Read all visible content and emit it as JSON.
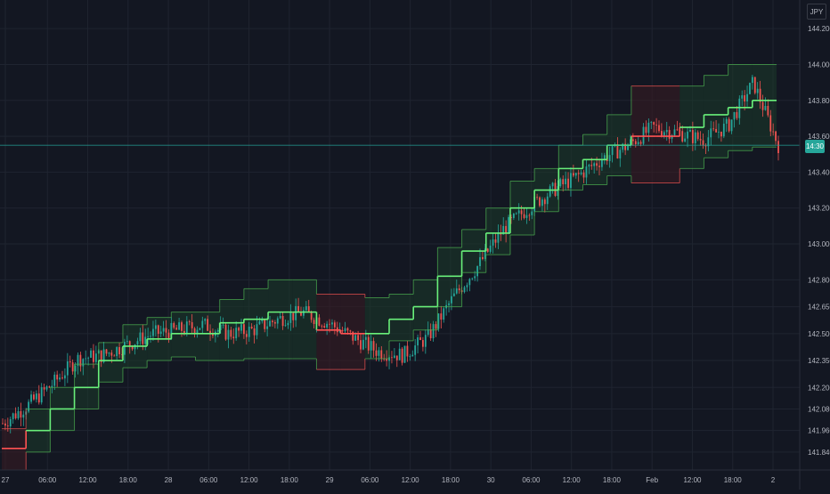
{
  "currency": "JPY",
  "last_price_label": "14:30",
  "colors": {
    "background": "#131722",
    "grid": "#1f2430",
    "up_candle": "#26a69a",
    "down_candle": "#ef5350",
    "band_up_fill": "#1b3a2a",
    "band_down_fill": "#3a1b22",
    "band_edge_up": "#4caf50",
    "band_edge_down": "#ef5350",
    "midline_up": "#69f07a",
    "midline_down": "#ff5252",
    "price_line": "#26a69a"
  },
  "chart_data": {
    "type": "line",
    "ylim": [
      141.74,
      144.3
    ],
    "yticks": [
      "144.200",
      "144.000",
      "143.800",
      "143.600",
      "143.400",
      "143.200",
      "143.000",
      "142.800",
      "142.650",
      "142.500",
      "142.350",
      "142.200",
      "142.080",
      "141.960",
      "141.840"
    ],
    "xticks": [
      "27",
      "06:00",
      "12:00",
      "18:00",
      "28",
      "06:00",
      "12:00",
      "18:00",
      "29",
      "06:00",
      "12:00",
      "18:00",
      "30",
      "06:00",
      "12:00",
      "18:00",
      "Feb",
      "12:00",
      "18:00",
      "2"
    ],
    "last_price": 143.55,
    "channel": {
      "x_index": [
        0,
        1,
        2,
        3,
        4,
        5,
        6,
        7,
        8,
        9,
        10,
        11,
        12,
        13,
        14,
        15,
        16,
        17,
        18,
        19,
        20,
        21,
        22,
        23,
        24,
        25,
        26,
        27,
        28,
        29,
        30,
        31
      ],
      "upper": [
        141.97,
        142.08,
        142.2,
        142.33,
        142.45,
        142.55,
        142.59,
        142.62,
        142.62,
        142.69,
        142.75,
        142.8,
        142.8,
        142.72,
        142.72,
        142.7,
        142.72,
        142.8,
        142.98,
        143.08,
        143.2,
        143.35,
        143.42,
        143.55,
        143.61,
        143.72,
        143.88,
        143.88,
        143.88,
        143.94,
        144.0,
        144.0
      ],
      "mid": [
        141.86,
        141.96,
        142.08,
        142.2,
        142.35,
        142.43,
        142.47,
        142.5,
        142.5,
        142.56,
        142.58,
        142.62,
        142.62,
        142.52,
        142.5,
        142.5,
        142.58,
        142.65,
        142.82,
        142.96,
        143.06,
        143.2,
        143.3,
        143.42,
        143.47,
        143.55,
        143.6,
        143.6,
        143.65,
        143.72,
        143.76,
        143.8
      ],
      "lower": [
        141.74,
        141.84,
        141.96,
        142.08,
        142.23,
        142.31,
        142.35,
        142.37,
        142.35,
        142.35,
        142.36,
        142.36,
        142.36,
        142.3,
        142.3,
        142.36,
        142.46,
        142.52,
        142.65,
        142.84,
        142.94,
        143.05,
        143.18,
        143.3,
        143.33,
        143.38,
        143.34,
        143.34,
        143.42,
        143.48,
        143.52,
        143.54
      ],
      "regime": [
        "down",
        "up",
        "up",
        "up",
        "up",
        "up",
        "up",
        "up",
        "up",
        "up",
        "up",
        "up",
        "up",
        "down",
        "down",
        "up",
        "up",
        "up",
        "up",
        "up",
        "up",
        "up",
        "up",
        "up",
        "up",
        "up",
        "down",
        "down",
        "up",
        "up",
        "up",
        "up"
      ]
    },
    "price_path": [
      142.0,
      142.1,
      142.22,
      142.36,
      142.38,
      142.44,
      142.5,
      142.52,
      142.55,
      142.5,
      142.52,
      142.58,
      142.62,
      142.56,
      142.48,
      142.4,
      142.38,
      142.48,
      142.7,
      142.88,
      143.08,
      143.2,
      143.3,
      143.38,
      143.48,
      143.55,
      143.65,
      143.62,
      143.58,
      143.66,
      143.9,
      143.55
    ]
  }
}
